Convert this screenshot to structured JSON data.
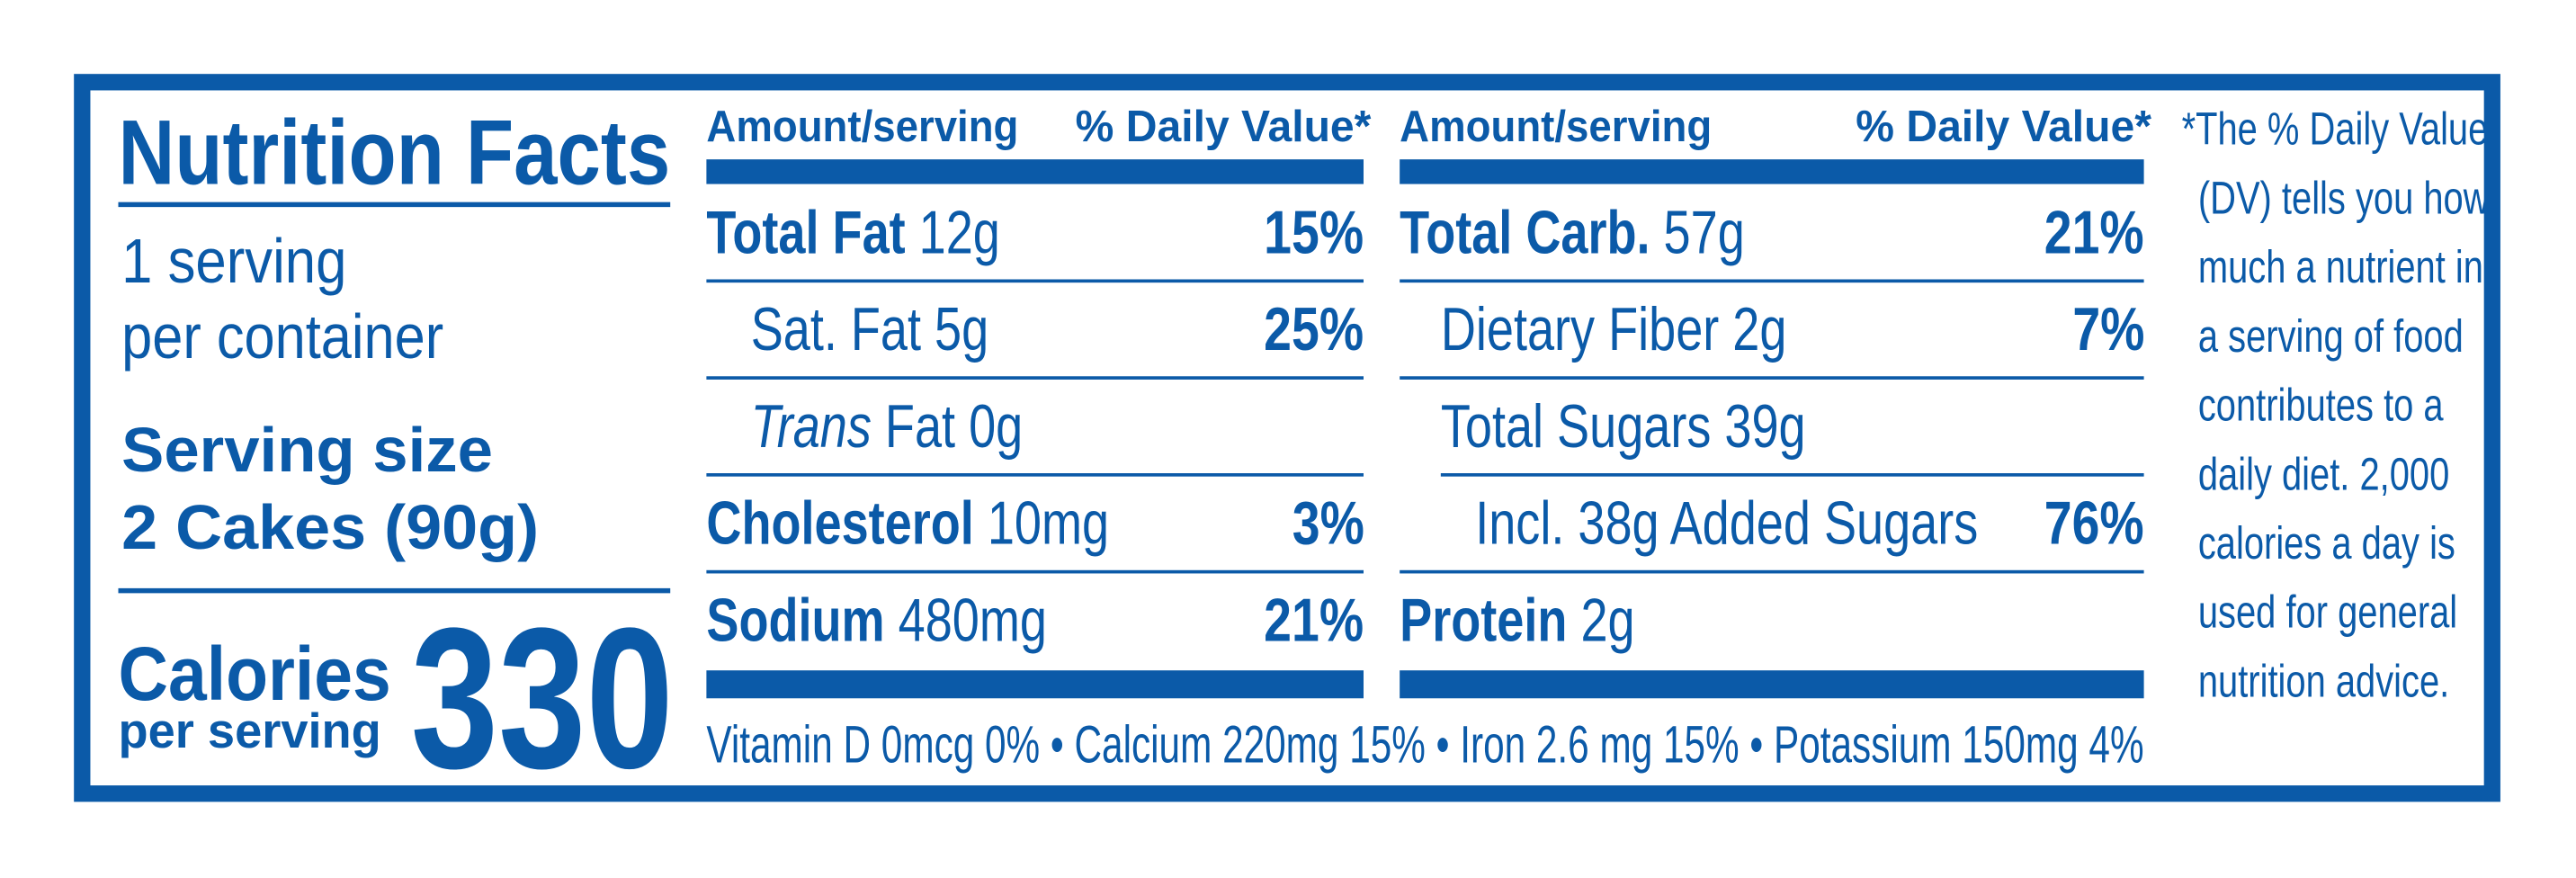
{
  "label": {
    "title": "Nutrition Facts",
    "servings": [
      "1 serving",
      "per container"
    ],
    "serving_size": {
      "label": "Serving size",
      "value": "2 Cakes (90g)"
    },
    "calories": {
      "label": "Calories",
      "sublabel": "per serving",
      "value": 330
    },
    "columns": [
      {
        "header": {
          "amount": "Amount/serving",
          "dv": "% Daily Value*"
        },
        "rows": [
          {
            "bold": "Total Fat",
            "amount": "12g",
            "dv": "15%"
          },
          {
            "name": "Sat. Fat 5g",
            "dv": "25%"
          },
          {
            "italic": "Trans",
            "name": "Fat 0g"
          },
          {
            "bold": "Cholesterol",
            "amount": "10mg",
            "dv": "3%"
          },
          {
            "bold": "Sodium",
            "amount": "480mg",
            "dv": "21%"
          }
        ]
      },
      {
        "header": {
          "amount": "Amount/serving",
          "dv": "% Daily Value*"
        },
        "rows": [
          {
            "bold": "Total Carb.",
            "amount": "57g",
            "dv": "21%"
          },
          {
            "name": "Dietary Fiber 2g",
            "dv": "7%"
          },
          {
            "name": "Total Sugars 39g"
          },
          {
            "name": "Incl. 38g Added Sugars",
            "dv": "76%"
          },
          {
            "bold": "Protein",
            "amount": "2g"
          }
        ]
      }
    ],
    "vitamins": "Vitamin D 0mcg 0% • Calcium 220mg 15% • Iron 2.6 mg 15% • Potassium 150mg 4%",
    "footnote": [
      "*The % Daily Value",
      "(DV) tells you how",
      "much a nutrient in",
      "a serving of food",
      "contributes to a",
      "daily diet. 2,000",
      "calories a day is",
      "used for general",
      "nutrition advice."
    ]
  }
}
